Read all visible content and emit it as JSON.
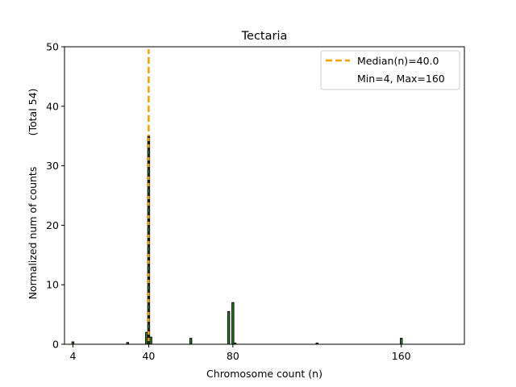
{
  "chart_data": {
    "type": "bar",
    "title": "Tectaria",
    "xlabel": "Chromosome count (n)",
    "ylabel": "Normalized num of counts",
    "ylabel_total": "(Total 54)",
    "xlim": [
      0,
      190
    ],
    "ylim": [
      0,
      50
    ],
    "xticks": [
      4,
      40,
      80,
      160
    ],
    "yticks": [
      0,
      10,
      20,
      30,
      40,
      50
    ],
    "bar_color": "#2e8b2e",
    "bar_edge": "#000000",
    "median_color": "#f4a300",
    "bars": [
      {
        "x": 4,
        "y": 0.4
      },
      {
        "x": 30,
        "y": 0.3
      },
      {
        "x": 39,
        "y": 2.0
      },
      {
        "x": 40,
        "y": 35.0
      },
      {
        "x": 41,
        "y": 1.2
      },
      {
        "x": 60,
        "y": 1.0
      },
      {
        "x": 78,
        "y": 5.5
      },
      {
        "x": 80,
        "y": 7.0
      },
      {
        "x": 81,
        "y": 0.2
      },
      {
        "x": 120,
        "y": 0.2
      },
      {
        "x": 160,
        "y": 1.0
      }
    ],
    "median": 40.0,
    "legend": {
      "median_label": "Median(n)=40.0",
      "range_label": "Min=4, Max=160",
      "position": "top-right"
    }
  }
}
